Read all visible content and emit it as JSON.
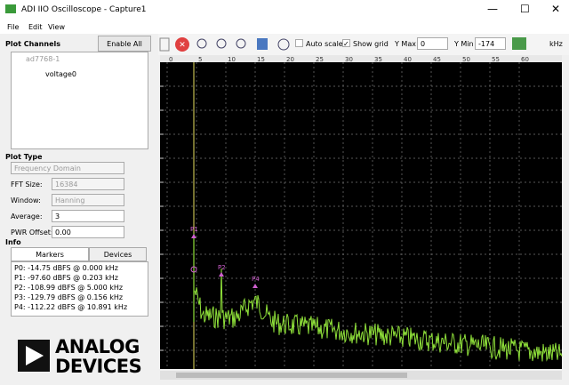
{
  "window": {
    "title": "ADI IIO Oscilloscope - Capture1"
  },
  "menu": [
    "File",
    "Edit",
    "View"
  ],
  "left_panel": {
    "plot_channels": {
      "heading": "Plot Channels",
      "button": "Enable All",
      "device": "ad7768-1",
      "channel": "voltage0"
    },
    "plot_type": {
      "heading": "Plot Type",
      "domain": "Frequency Domain",
      "fields": [
        {
          "label": "FFT Size:",
          "value": "16384"
        },
        {
          "label": "Window:",
          "value": "Hanning"
        },
        {
          "label": "Average:",
          "value": "3"
        },
        {
          "label": "PWR Offset:",
          "value": "0.00"
        }
      ]
    },
    "info": {
      "heading": "Info",
      "tabs": [
        "Markers",
        "Devices"
      ],
      "markers": [
        "P0: -14.75 dBFS @ 0.000 kHz",
        "P1: -97.60 dBFS @ 0.203 kHz",
        "P2: -108.99 dBFS @ 5.000 kHz",
        "P3: -129.79 dBFS @ 0.156 kHz",
        "P4: -112.22 dBFS @ 10.891 kHz"
      ]
    }
  },
  "toolbar": {
    "auto_scale": "Auto scale",
    "show_grid": "Show grid",
    "y_max_label": "Y Max",
    "y_max": "0",
    "y_min_label": "Y Min",
    "y_min": "-174",
    "unit": "kHz"
  },
  "plot": {
    "x_labels": [
      "0",
      "5",
      "10",
      "15",
      "20",
      "25",
      "30",
      "35",
      "40",
      "45",
      "50",
      "55",
      "60"
    ],
    "marker_labels": [
      "P1",
      "P2",
      "P4"
    ]
  },
  "logo": {
    "line1": "ANALOG",
    "line2": "DEVICES"
  }
}
